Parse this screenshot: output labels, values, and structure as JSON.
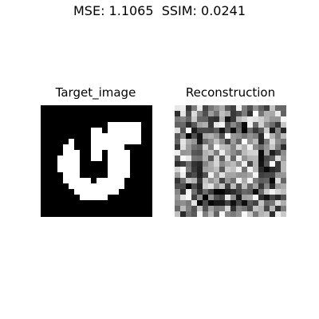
{
  "figure_title": "MSE: 1.1065  SSIM: 0.0241",
  "panels": {
    "left_title": "Target_image",
    "right_title": "Reconstruction"
  },
  "grid": {
    "size": 20
  }
}
